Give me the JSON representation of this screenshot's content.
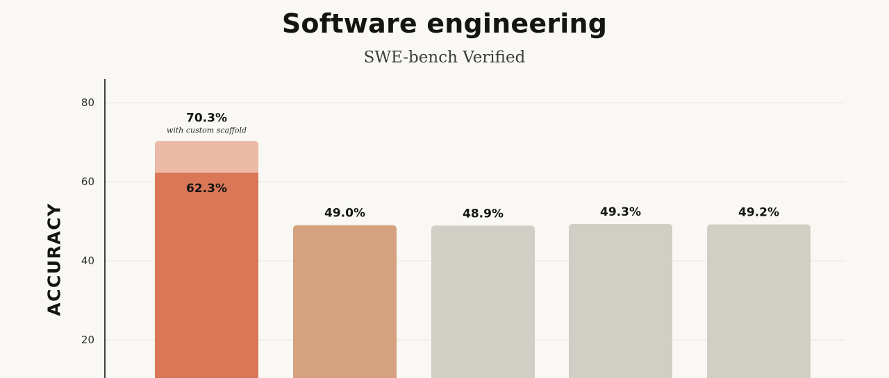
{
  "chart_data": {
    "type": "bar",
    "title": "Software engineering",
    "subtitle": "SWE-bench Verified",
    "ylabel": "ACCURACY",
    "xlabel": "",
    "ylim": [
      0,
      86
    ],
    "yticks": [
      20,
      40,
      60,
      80
    ],
    "grid": true,
    "values": [
      62.3,
      49.0,
      48.9,
      49.3,
      49.2
    ],
    "labels": [
      "62.3%",
      "49.0%",
      "48.9%",
      "49.3%",
      "49.2%"
    ],
    "colors": [
      "#d97757",
      "#d4a27f",
      "#d1cec5",
      "#d1cec5",
      "#d1cec5"
    ],
    "extra": {
      "bar_index": 0,
      "value": 70.3,
      "label": "70.3%",
      "note": "with custom scaffold",
      "color": "#ebb9a6"
    }
  }
}
